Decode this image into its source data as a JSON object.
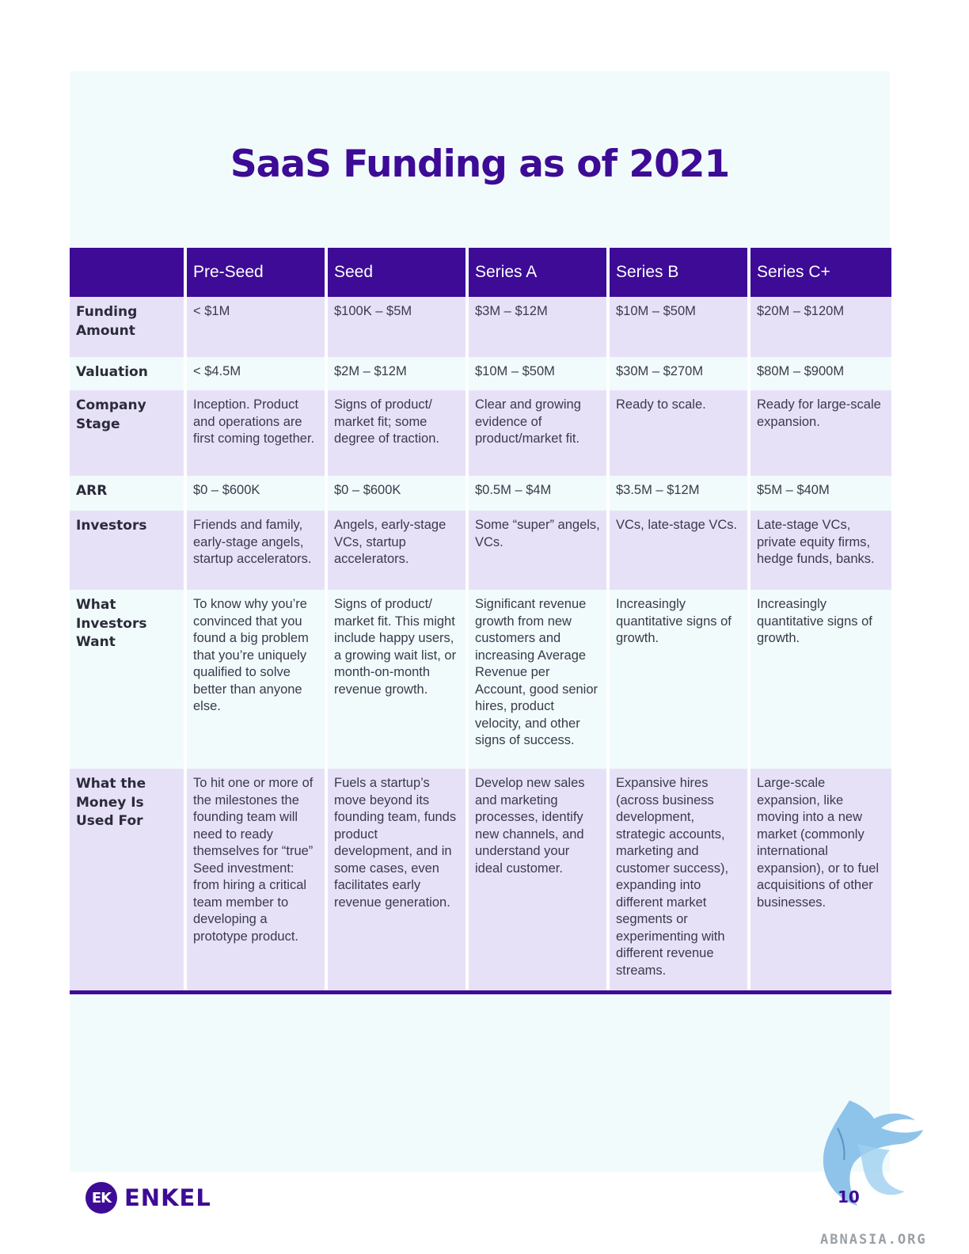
{
  "title": "SaaS Funding as of 2021",
  "colors": {
    "brand": "#3d0b96",
    "row_shade": "#e7e1f8",
    "panel": "#f1fbfb"
  },
  "table": {
    "columns": [
      "",
      "Pre-Seed",
      "Seed",
      "Series A",
      "Series B",
      "Series C+"
    ],
    "rows": [
      {
        "label": "Funding Amount",
        "cells": [
          "< $1M",
          "$100K – $5M",
          "$3M – $12M",
          "$10M – $50M",
          "$20M – $120M"
        ]
      },
      {
        "label": "Valuation",
        "cells": [
          "< $4.5M",
          "$2M – $12M",
          "$10M – $50M",
          "$30M – $270M",
          "$80M – $900M"
        ]
      },
      {
        "label": "Company Stage",
        "cells": [
          "Inception. Product and operations are first coming together.",
          "Signs of product/ market fit; some degree of traction.",
          "Clear and growing evidence of product/market fit.",
          "Ready to scale.",
          "Ready for large-scale expansion."
        ]
      },
      {
        "label": "ARR",
        "cells": [
          "$0 – $600K",
          "$0 – $600K",
          "$0.5M – $4M",
          "$3.5M – $12M",
          "$5M – $40M"
        ]
      },
      {
        "label": "Investors",
        "cells": [
          "Friends and family, early-stage angels, startup accelerators.",
          "Angels, early-stage VCs, startup accelerators.",
          "Some “super” angels, VCs.",
          "VCs, late-stage VCs.",
          "Late-stage VCs, private equity firms, hedge funds, banks."
        ]
      },
      {
        "label": "What Investors Want",
        "cells": [
          "To know why you’re convinced that you found a big problem that you’re uniquely qualified to solve better than anyone else.",
          "Signs of product/ market fit. This might include happy users, a growing wait list, or month-on-month revenue growth.",
          "Significant revenue growth from new customers and increasing Average Revenue per Account, good senior hires, product velocity, and other signs of success.",
          "Increasingly quantitative signs of growth.",
          "Increasingly quantitative signs of growth."
        ]
      },
      {
        "label": "What the Money Is Used For",
        "cells": [
          "To hit one or more of the milestones the founding team will need to ready themselves for “true” Seed investment: from hiring a critical team member to developing a prototype product.",
          "Fuels a startup’s move beyond its founding team, funds product development, and in some cases, even facilitates early revenue generation.",
          "Develop new sales and marketing processes, identify new channels, and understand your ideal customer.",
          "Expansive hires (across business development, strategic accounts, marketing and customer success), expanding into different market segments or experimenting with different revenue streams.",
          "Large-scale expansion, like moving into a new market (commonly international expansion), or to fuel acquisitions of other businesses."
        ]
      }
    ]
  },
  "footer": {
    "logo_mark": "EK",
    "logo_text": "ENKEL",
    "page_number": "10",
    "site": "ABNASIA.ORG",
    "watermark_icon": "griffin-icon"
  }
}
